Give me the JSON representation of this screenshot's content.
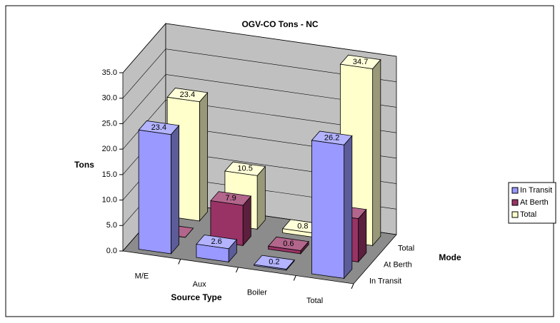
{
  "chart_data": {
    "type": "bar3d",
    "title": "OGV-CO Tons - NC",
    "y_label": "Tons",
    "x_label": "Source Type",
    "z_label": "Mode",
    "categories": [
      "M/E",
      "Aux",
      "Boiler",
      "Total"
    ],
    "series": [
      {
        "name": "In Transit",
        "color": "#9999ff",
        "values": [
          23.4,
          2.6,
          0.2,
          26.2
        ]
      },
      {
        "name": "At Berth",
        "color": "#993366",
        "values": [
          0,
          7.9,
          0.6,
          8.5
        ]
      },
      {
        "name": "Total",
        "color": "#ffffcc",
        "values": [
          23.4,
          10.5,
          0.8,
          34.7
        ]
      }
    ],
    "ylim": [
      0,
      35
    ],
    "yticks": [
      {
        "value": 0,
        "label": "0.0"
      },
      {
        "value": 5,
        "label": "5.0"
      },
      {
        "value": 10,
        "label": "10.0"
      },
      {
        "value": 15,
        "label": "15.0"
      },
      {
        "value": 20,
        "label": "20.0"
      },
      {
        "value": 25,
        "label": "25.0"
      },
      {
        "value": 30,
        "label": "30.0"
      },
      {
        "value": 35,
        "label": "35.0"
      }
    ],
    "grid": true,
    "legend": "right"
  }
}
